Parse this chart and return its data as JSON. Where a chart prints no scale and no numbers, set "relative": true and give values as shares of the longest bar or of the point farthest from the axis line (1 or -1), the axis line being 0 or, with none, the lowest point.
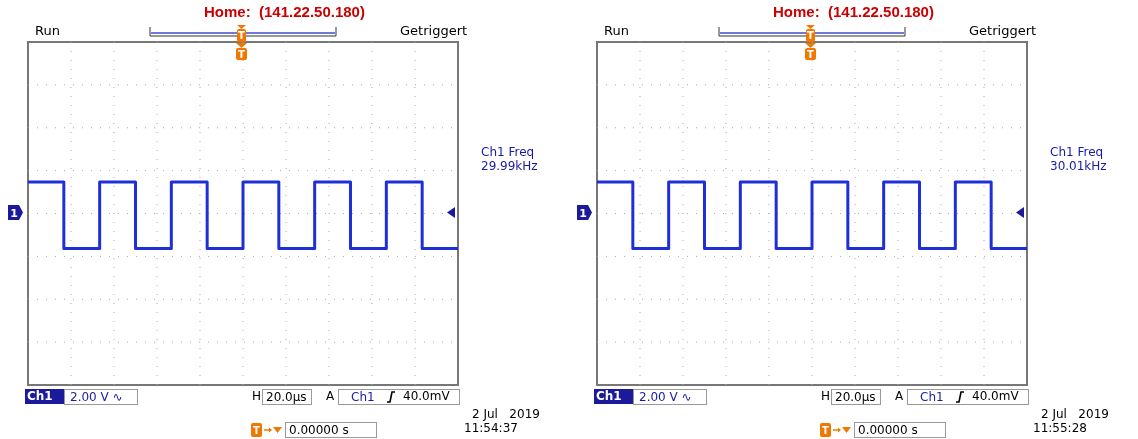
{
  "chart_data": [
    {
      "type": "step",
      "title": "Home:  (141.22.50.180)",
      "relative": true,
      "grid": true,
      "marker": "none",
      "line_style": "solid",
      "categories": [
        null,
        null,
        null,
        null,
        null,
        null,
        null,
        null,
        null,
        null,
        null,
        null,
        null
      ],
      "series": [
        {
          "color": "#1f2fd8",
          "values": [
            0.9,
            -1,
            0.9,
            -1,
            0.9,
            -1,
            0.9,
            -1,
            0.9,
            -1,
            0.9,
            -1,
            -1
          ]
        }
      ],
      "annotations": [
        "Run",
        "Getriggert",
        "Ch1 Freq",
        "29.99kHz",
        "Ch1",
        "2.00 V ∿",
        "H",
        "20.0µs",
        "A",
        "Ch1",
        "40.0mV",
        "0.00000 s",
        "2 Jul   2019",
        "11:54:37",
        "T",
        "T",
        "1",
        "T"
      ]
    },
    {
      "type": "step",
      "title": "Home:  (141.22.50.180)",
      "relative": true,
      "grid": true,
      "marker": "none",
      "line_style": "solid",
      "categories": [
        null,
        null,
        null,
        null,
        null,
        null,
        null,
        null,
        null,
        null,
        null,
        null,
        null
      ],
      "series": [
        {
          "color": "#1f2fd8",
          "values": [
            0.9,
            -1,
            0.9,
            -1,
            0.9,
            -1,
            0.9,
            -1,
            0.9,
            -1,
            0.9,
            -1,
            -1
          ]
        }
      ],
      "annotations": [
        "Run",
        "Getriggert",
        "Ch1 Freq",
        "30.01kHz",
        "Ch1",
        "2.00 V ∿",
        "H",
        "20.0µs",
        "A",
        "Ch1",
        "40.0mV",
        "0.00000 s",
        "2 Jul   2019",
        "11:55:28",
        "T",
        "T",
        "1",
        "T"
      ]
    }
  ]
}
